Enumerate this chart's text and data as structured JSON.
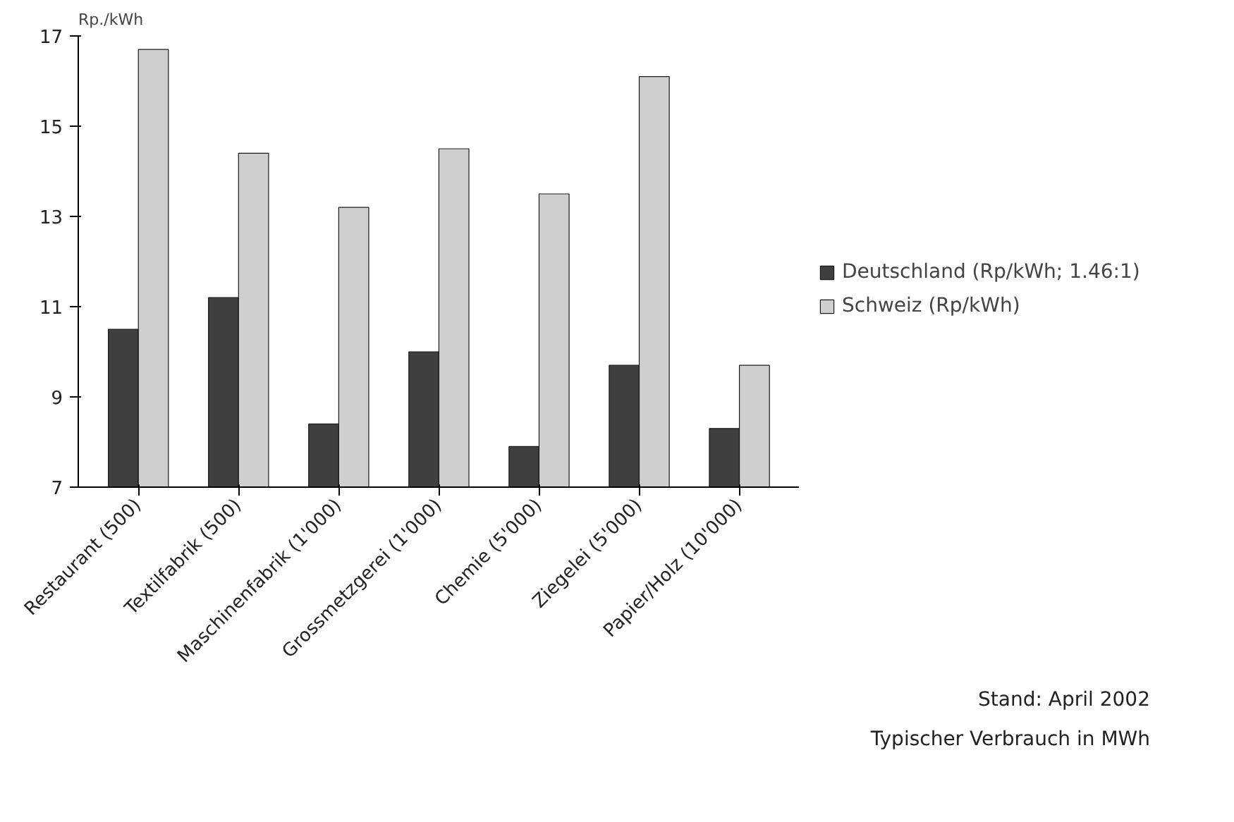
{
  "chart_data": {
    "type": "bar",
    "ylabel": "Rp./kWh",
    "categories": [
      "Restaurant (500)",
      "Textilfabrik (500)",
      "Maschinenfabrik (1'000)",
      "Grossmetzgerei (1'000)",
      "Chemie (5'000)",
      "Ziegelei (5'000)",
      "Papier/Holz (10'000)"
    ],
    "series": [
      {
        "name": "Deutschland (Rp/kWh; 1.46:1)",
        "color": "#3f3f3f",
        "values": [
          10.5,
          11.2,
          8.4,
          10.0,
          7.9,
          9.7,
          8.3
        ]
      },
      {
        "name": "Schweiz (Rp/kWh)",
        "color": "#cfcfcf",
        "values": [
          16.7,
          14.4,
          13.2,
          14.5,
          13.5,
          16.1,
          9.7
        ]
      }
    ],
    "ylim": [
      7,
      17
    ],
    "yticks": [
      7,
      9,
      11,
      13,
      15,
      17
    ],
    "grid": false,
    "legend": "right",
    "annotations": [
      "Stand: April 2002",
      "Typischer Verbrauch in MWh"
    ]
  }
}
